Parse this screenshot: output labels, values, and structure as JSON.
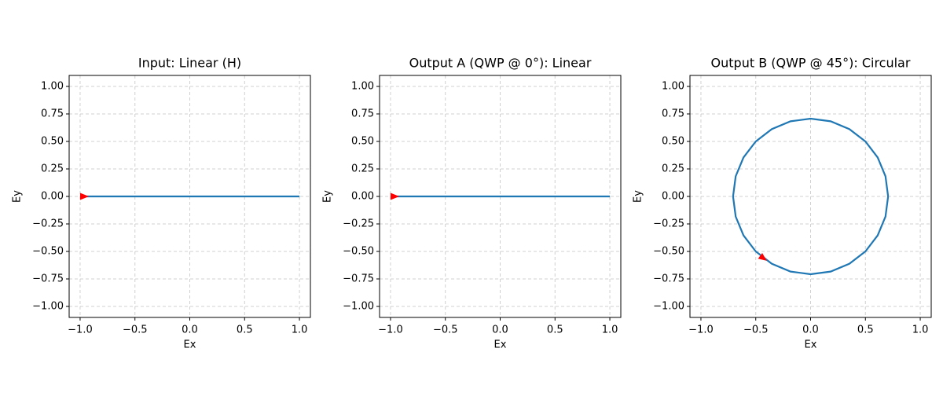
{
  "chart_data": [
    {
      "type": "line",
      "title": "Input: Linear (H)",
      "xlabel": "Ex",
      "ylabel": "Ey",
      "xlim": [
        -1.1,
        1.1
      ],
      "ylim": [
        -1.1,
        1.1
      ],
      "grid": true,
      "xticks": [
        {
          "value": -1,
          "label": "−1.0"
        },
        {
          "value": -0.5,
          "label": "−0.5"
        },
        {
          "value": 0,
          "label": "0.0"
        },
        {
          "value": 0.5,
          "label": "0.5"
        },
        {
          "value": 1,
          "label": "1.0"
        }
      ],
      "yticks": [
        {
          "value": -1,
          "label": "−1.00"
        },
        {
          "value": -0.75,
          "label": "−0.75"
        },
        {
          "value": -0.5,
          "label": "−0.50"
        },
        {
          "value": -0.25,
          "label": "−0.25"
        },
        {
          "value": 0,
          "label": "0.00"
        },
        {
          "value": 0.25,
          "label": "0.25"
        },
        {
          "value": 0.5,
          "label": "0.50"
        },
        {
          "value": 0.75,
          "label": "0.75"
        },
        {
          "value": 1,
          "label": "1.00"
        }
      ],
      "series": [
        {
          "color": "#1f77b4",
          "x": [
            -1,
            1
          ],
          "y": [
            0,
            0
          ]
        }
      ],
      "arrow": {
        "color": "#ff0000",
        "x": [
          -1,
          -0.92
        ],
        "y": [
          0,
          0
        ]
      }
    },
    {
      "type": "line",
      "title": "Output A (QWP @ 0°): Linear",
      "xlabel": "Ex",
      "ylabel": "Ey",
      "xlim": [
        -1.1,
        1.1
      ],
      "ylim": [
        -1.1,
        1.1
      ],
      "grid": true,
      "xticks": [
        {
          "value": -1,
          "label": "−1.0"
        },
        {
          "value": -0.5,
          "label": "−0.5"
        },
        {
          "value": 0,
          "label": "0.0"
        },
        {
          "value": 0.5,
          "label": "0.5"
        },
        {
          "value": 1,
          "label": "1.0"
        }
      ],
      "yticks": [
        {
          "value": -1,
          "label": "−1.00"
        },
        {
          "value": -0.75,
          "label": "−0.75"
        },
        {
          "value": -0.5,
          "label": "−0.50"
        },
        {
          "value": -0.25,
          "label": "−0.25"
        },
        {
          "value": 0,
          "label": "0.00"
        },
        {
          "value": 0.25,
          "label": "0.25"
        },
        {
          "value": 0.5,
          "label": "0.50"
        },
        {
          "value": 0.75,
          "label": "0.75"
        },
        {
          "value": 1,
          "label": "1.00"
        }
      ],
      "series": [
        {
          "color": "#1f77b4",
          "x": [
            -1,
            1
          ],
          "y": [
            0,
            0
          ]
        }
      ],
      "arrow": {
        "color": "#ff0000",
        "x": [
          -1,
          -0.92
        ],
        "y": [
          0,
          0
        ]
      }
    },
    {
      "type": "line",
      "title": "Output B (QWP @ 45°): Circular",
      "xlabel": "Ex",
      "ylabel": "Ey",
      "xlim": [
        -1.1,
        1.1
      ],
      "ylim": [
        -1.1,
        1.1
      ],
      "grid": true,
      "xticks": [
        {
          "value": -1,
          "label": "−1.0"
        },
        {
          "value": -0.5,
          "label": "−0.5"
        },
        {
          "value": 0,
          "label": "0.0"
        },
        {
          "value": 0.5,
          "label": "0.5"
        },
        {
          "value": 1,
          "label": "1.0"
        }
      ],
      "yticks": [
        {
          "value": -1,
          "label": "−1.00"
        },
        {
          "value": -0.75,
          "label": "−0.75"
        },
        {
          "value": -0.5,
          "label": "−0.50"
        },
        {
          "value": -0.25,
          "label": "−0.25"
        },
        {
          "value": 0,
          "label": "0.00"
        },
        {
          "value": 0.25,
          "label": "0.25"
        },
        {
          "value": 0.5,
          "label": "0.50"
        },
        {
          "value": 0.75,
          "label": "0.75"
        },
        {
          "value": 1,
          "label": "1.00"
        }
      ],
      "series": [
        {
          "color": "#1f77b4",
          "x": [
            0.707,
            0.683,
            0.612,
            0.5,
            0.354,
            0.183,
            0,
            -0.183,
            -0.354,
            -0.5,
            -0.612,
            -0.683,
            -0.707,
            -0.683,
            -0.612,
            -0.5,
            -0.354,
            -0.183,
            0,
            0.183,
            0.354,
            0.5,
            0.612,
            0.683,
            0.707
          ],
          "y": [
            0,
            0.183,
            0.354,
            0.5,
            0.612,
            0.683,
            0.707,
            0.683,
            0.612,
            0.5,
            0.354,
            0.183,
            0,
            -0.183,
            -0.354,
            -0.5,
            -0.612,
            -0.683,
            -0.707,
            -0.683,
            -0.612,
            -0.5,
            -0.354,
            -0.183,
            0
          ]
        }
      ],
      "arrow": {
        "color": "#ff0000",
        "x": [
          -0.46,
          -0.4
        ],
        "y": [
          -0.54,
          -0.585
        ]
      }
    }
  ]
}
